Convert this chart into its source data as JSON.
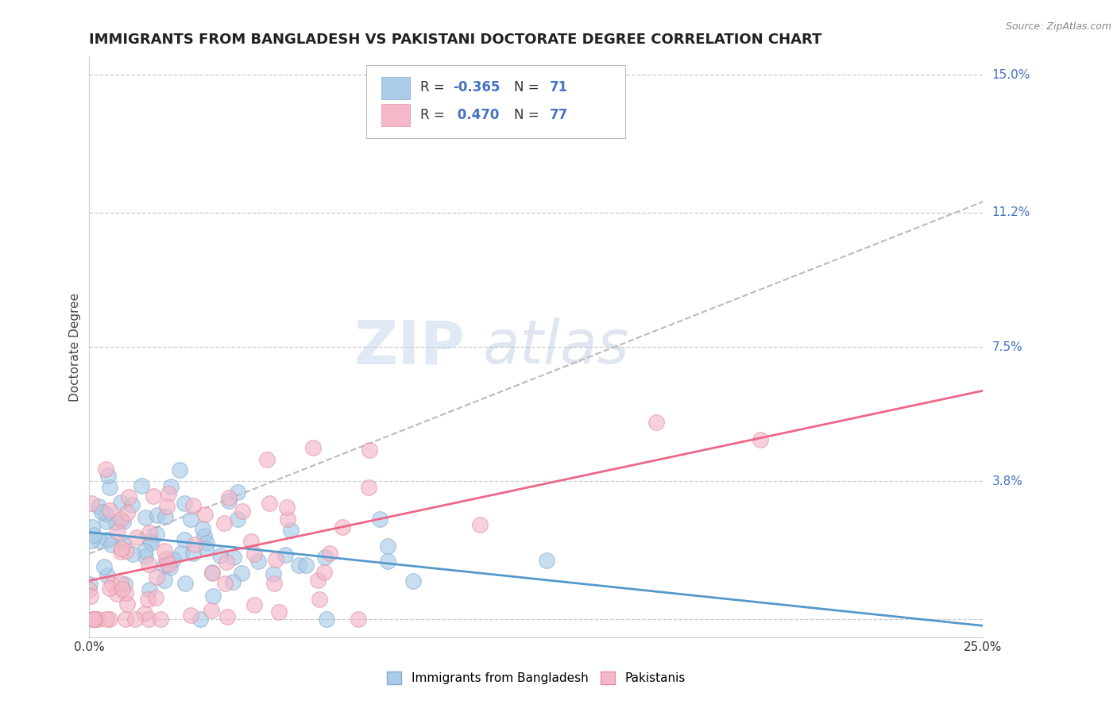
{
  "title": "IMMIGRANTS FROM BANGLADESH VS PAKISTANI DOCTORATE DEGREE CORRELATION CHART",
  "source": "Source: ZipAtlas.com",
  "ylabel": "Doctorate Degree",
  "xlim": [
    0.0,
    0.25
  ],
  "ylim": [
    -0.005,
    0.155
  ],
  "xticks": [
    0.0,
    0.25
  ],
  "xticklabels": [
    "0.0%",
    "25.0%"
  ],
  "yticks": [
    0.038,
    0.075,
    0.112,
    0.15
  ],
  "yticklabels": [
    "3.8%",
    "7.5%",
    "11.2%",
    "15.0%"
  ],
  "series1_color": "#aacce8",
  "series2_color": "#f4b8c8",
  "series1_edge": "#88aacc",
  "series2_edge": "#e090a0",
  "title_fontsize": 13,
  "axis_label_fontsize": 11,
  "tick_fontsize": 11,
  "background_color": "#ffffff",
  "grid_color": "#cccccc",
  "trend1_color": "#5599cc",
  "trend2_color": "#ee6688",
  "trend_dash_color": "#bbbbbb",
  "r1": -0.365,
  "n1": 71,
  "r2": 0.47,
  "n2": 77,
  "legend_r_text1": "R = -0.365   N = 71",
  "legend_r_text2": "R =  0.470   N = 77",
  "watermark_text": "ZIP",
  "watermark_text2": "atlas"
}
